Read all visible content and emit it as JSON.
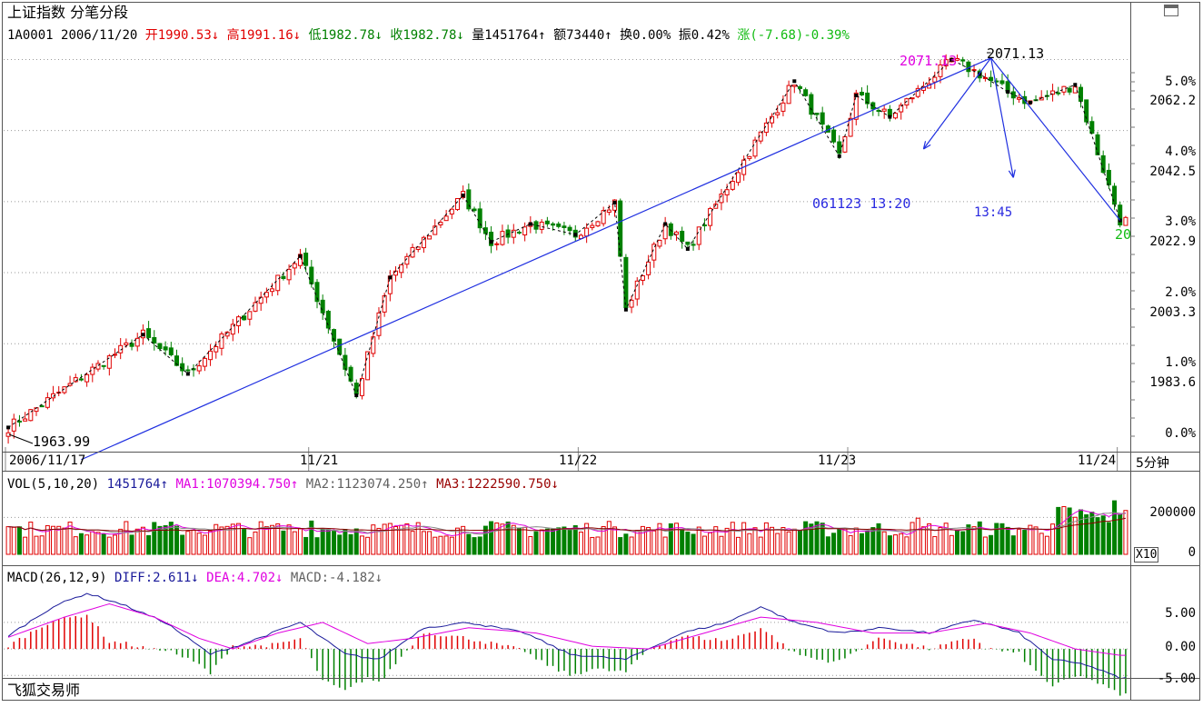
{
  "app": {
    "footer_label": "飞狐交易师",
    "panel_icon": "restore-icon"
  },
  "header": {
    "title": "上证指数",
    "mode": "分笔分段",
    "code": "1A0001",
    "date": "2006/11/20",
    "open": "开1990.53↓",
    "high": "高1991.16↓",
    "low": "低1982.78↓",
    "close": "收1982.78↓",
    "volume": "量1451764↑",
    "amount": "额73440↑",
    "turnover": "换0.00%",
    "amplitude": "振0.42%",
    "change": "涨(-7.68)-0.39%"
  },
  "colors": {
    "up": "#e00000",
    "down": "#008000",
    "trend": "#1f2fe0",
    "grid": "#9a9a9a"
  },
  "chart_data": [
    {
      "type": "candlestick",
      "period_label": "5分钟",
      "right_axis_pct": [
        "5.0%",
        "4.0%",
        "3.0%",
        "2.0%",
        "1.0%",
        "0.0%"
      ],
      "right_axis_price": [
        "2062.2",
        "2042.5",
        "2022.9",
        "2003.3",
        "1983.6"
      ],
      "pct_values": [
        5.0,
        4.0,
        3.0,
        2.0,
        1.0,
        0.0
      ],
      "price_values": [
        2062.2,
        2042.5,
        2022.9,
        2003.3,
        1983.6
      ],
      "x_labels": [
        "2006/11/17",
        "11/21",
        "11/22",
        "11/23",
        "11/24"
      ],
      "ylim": [
        1961.5,
        2073.5
      ],
      "annotations": {
        "low_label": "1963.99",
        "high_label": "2071.13",
        "high_label_mag": "2071.13",
        "time_label_1": "061123 13:20",
        "time_label_2": "13:45",
        "last_label": "20"
      },
      "zigzag": [
        [
          0,
          1967
        ],
        [
          24,
          1993
        ],
        [
          32,
          1982
        ],
        [
          52,
          2015
        ],
        [
          62,
          1976
        ],
        [
          68,
          2009
        ],
        [
          81,
          2032
        ],
        [
          86,
          2019
        ],
        [
          93,
          2024
        ],
        [
          101,
          2021
        ],
        [
          108,
          2030
        ],
        [
          110,
          2000
        ],
        [
          117,
          2024
        ],
        [
          121,
          2017
        ],
        [
          140,
          2064
        ],
        [
          148,
          2043
        ],
        [
          151,
          2060
        ],
        [
          157,
          2054
        ],
        [
          168,
          2070
        ],
        [
          173,
          2066
        ],
        [
          178,
          2061
        ],
        [
          182,
          2058
        ],
        [
          190,
          2063
        ],
        [
          198,
          2025
        ]
      ],
      "trendlines": [
        {
          "from": [
            13,
            1958
          ],
          "to": [
            175,
            2070.5
          ]
        },
        {
          "from": [
            175,
            2070.5
          ],
          "to": [
            198,
            2025
          ]
        }
      ],
      "arrows": [
        {
          "from": [
            175,
            2070.5
          ],
          "to": [
            163,
            2045
          ]
        },
        {
          "from": [
            175,
            2070.5
          ],
          "to": [
            179,
            2037
          ]
        }
      ]
    },
    {
      "type": "bar",
      "title": "VOL(5,10,20)",
      "value": "1451764↑",
      "ma1": "MA1:1070394.750↑",
      "ma2": "MA2:1123074.250↑",
      "ma3": "MA3:1222590.750↓",
      "axis_labels": [
        "200000",
        "0"
      ],
      "axis_values": [
        200000,
        0
      ],
      "unit_label": "X10",
      "ylim": [
        0,
        320000
      ]
    },
    {
      "type": "line",
      "title": "MACD(26,12,9)",
      "diff": "DIFF:2.611↓",
      "dea": "DEA:4.702↓",
      "macd": "MACD:-4.182↓",
      "axis_labels": [
        "5.00",
        "0.00",
        "-5.00"
      ],
      "axis_values": [
        5.0,
        0.0,
        -5.0
      ],
      "ylim": [
        -6.5,
        11.5
      ],
      "diff_keys": [
        [
          0,
          2.5
        ],
        [
          8,
          8
        ],
        [
          14,
          10.5
        ],
        [
          20,
          8.5
        ],
        [
          28,
          5
        ],
        [
          36,
          -1
        ],
        [
          42,
          1
        ],
        [
          52,
          5
        ],
        [
          60,
          -1
        ],
        [
          66,
          -2
        ],
        [
          74,
          4
        ],
        [
          82,
          5
        ],
        [
          92,
          3
        ],
        [
          100,
          -1
        ],
        [
          110,
          -2
        ],
        [
          120,
          3
        ],
        [
          128,
          5
        ],
        [
          134,
          8
        ],
        [
          140,
          5
        ],
        [
          148,
          3
        ],
        [
          156,
          4
        ],
        [
          164,
          3
        ],
        [
          172,
          5.5
        ],
        [
          180,
          3
        ],
        [
          186,
          -2
        ],
        [
          192,
          -3
        ],
        [
          198,
          -5.5
        ]
      ],
      "dea_keys": [
        [
          0,
          2.2
        ],
        [
          10,
          6
        ],
        [
          18,
          8.5
        ],
        [
          26,
          6
        ],
        [
          34,
          2
        ],
        [
          40,
          0
        ],
        [
          48,
          3
        ],
        [
          56,
          5
        ],
        [
          64,
          1
        ],
        [
          72,
          2
        ],
        [
          82,
          4
        ],
        [
          94,
          3
        ],
        [
          104,
          0.5
        ],
        [
          114,
          0
        ],
        [
          124,
          3
        ],
        [
          134,
          6
        ],
        [
          144,
          5
        ],
        [
          154,
          3
        ],
        [
          164,
          3
        ],
        [
          174,
          4.8
        ],
        [
          182,
          3
        ],
        [
          190,
          0
        ],
        [
          198,
          -1.2
        ]
      ]
    }
  ]
}
